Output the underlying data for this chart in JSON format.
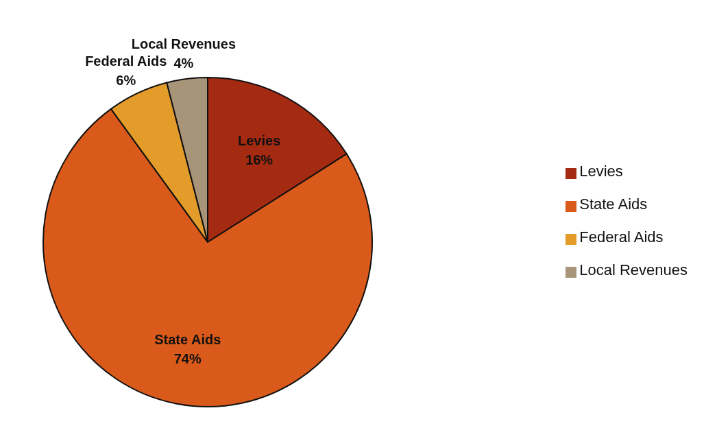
{
  "chart_data": {
    "type": "pie",
    "categories": [
      "Levies",
      "State Aids",
      "Federal Aids",
      "Local Revenues"
    ],
    "values": [
      16,
      74,
      6,
      4
    ],
    "value_labels": [
      "16%",
      "74%",
      "6%",
      "4%"
    ],
    "colors": [
      "#a52a12",
      "#d95a1a",
      "#e39b2a",
      "#a89478"
    ],
    "legend": "right"
  }
}
